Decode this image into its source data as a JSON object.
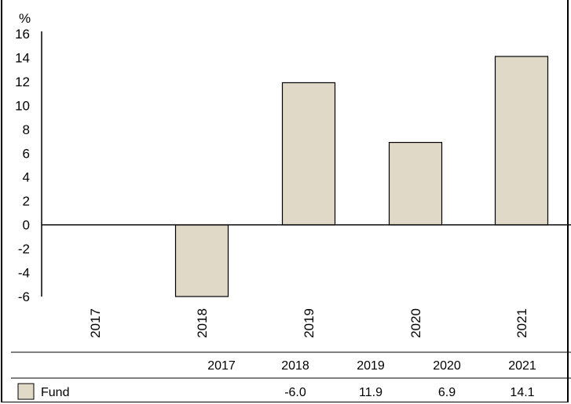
{
  "chart_data": {
    "type": "bar",
    "ylabel": "%",
    "ylim": [
      -6,
      16
    ],
    "yticks": [
      "16",
      "14",
      "12",
      "10",
      "8",
      "6",
      "4",
      "2",
      "0",
      "-2",
      "-4",
      "-6"
    ],
    "categories": [
      "2017",
      "2018",
      "2019",
      "2020",
      "2021"
    ],
    "series": [
      {
        "name": "Fund",
        "values": [
          null,
          -6.0,
          11.9,
          6.9,
          14.1
        ],
        "color": "#e1d9c8"
      }
    ],
    "table": {
      "headers": [
        "2017",
        "2018",
        "2019",
        "2020",
        "2021"
      ],
      "rows": [
        {
          "label": "Fund",
          "cells": [
            "",
            "-6.0",
            "11.9",
            "6.9",
            "14.1"
          ]
        }
      ]
    },
    "grid": false,
    "legend": "table-bottom-left"
  }
}
